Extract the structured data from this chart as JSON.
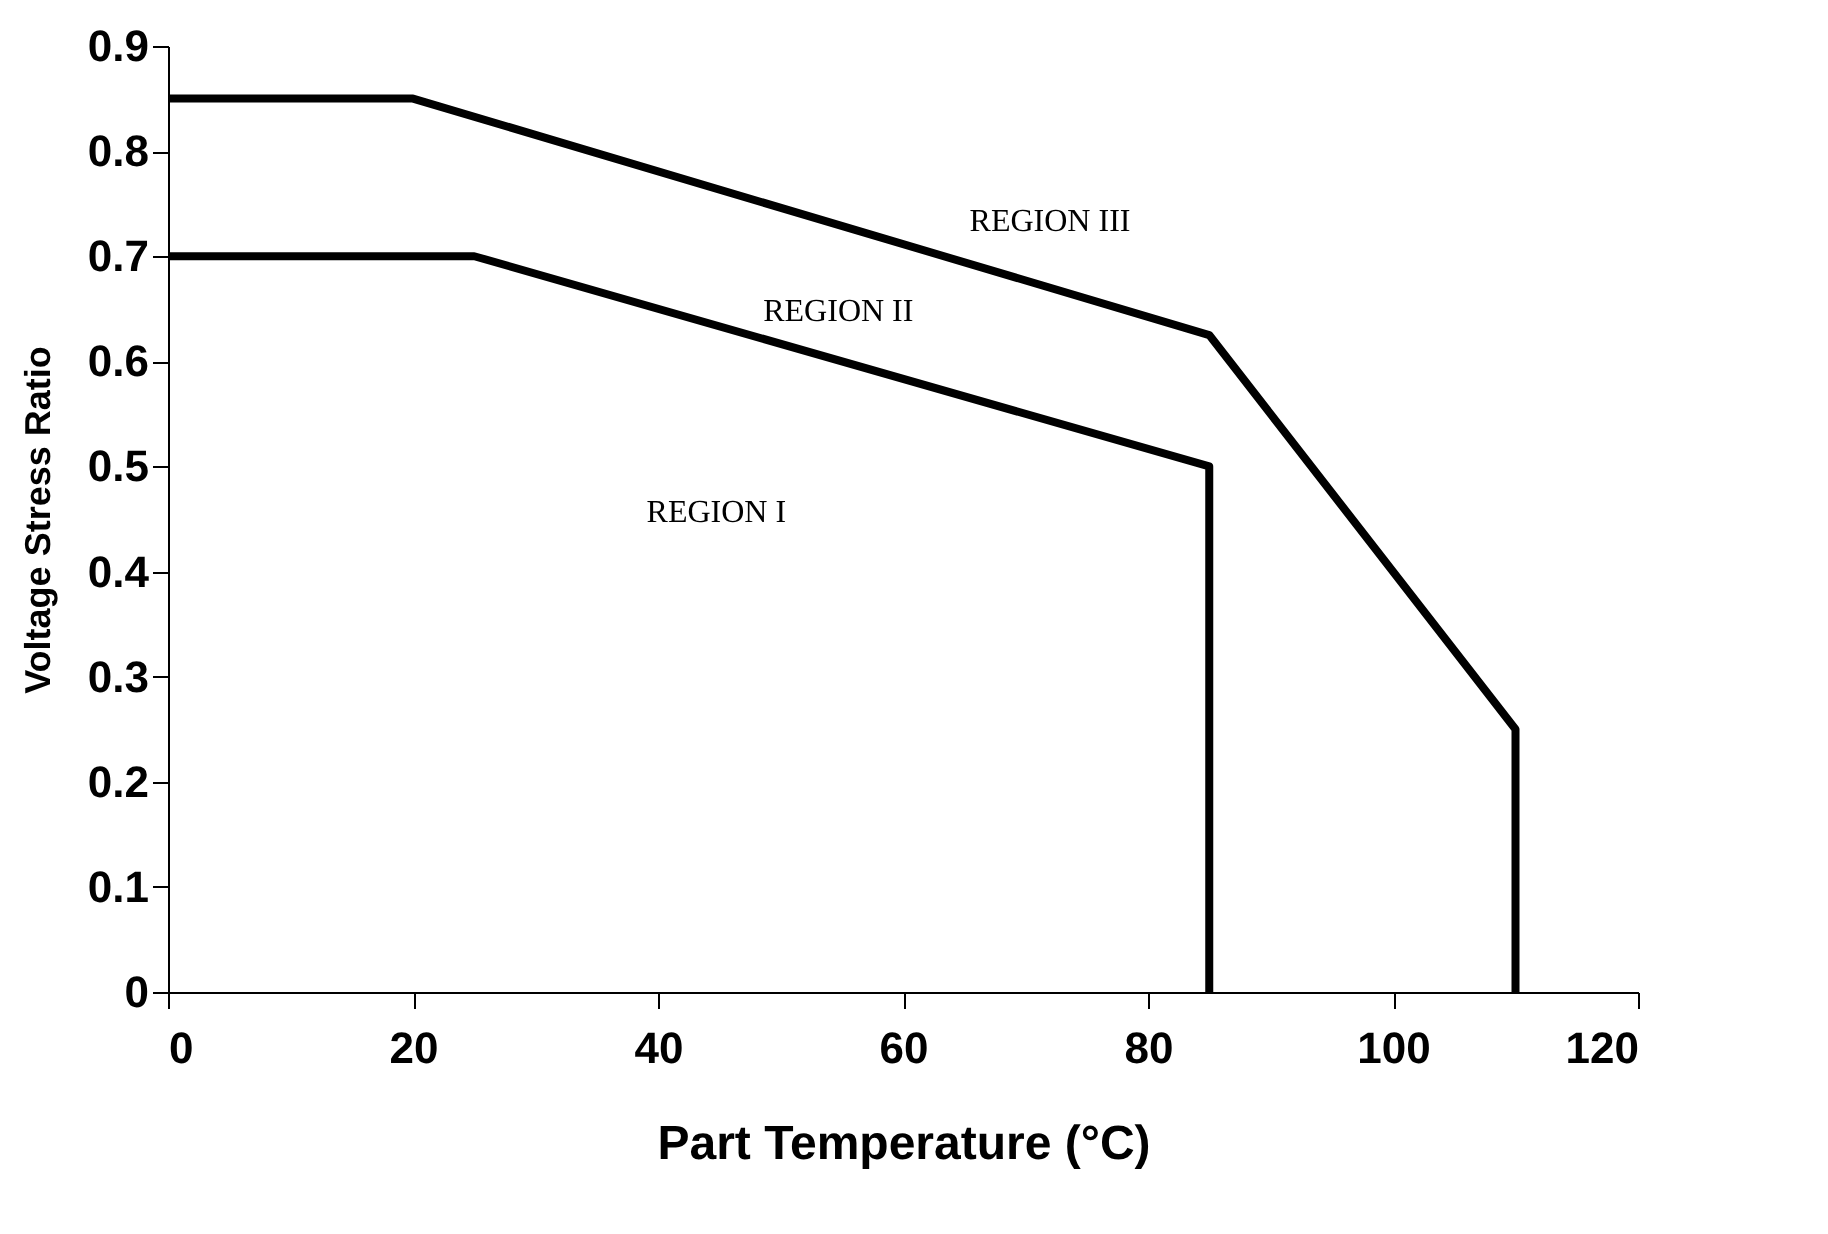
{
  "chart_data": {
    "type": "line",
    "xlabel": "Part Temperature (°C)",
    "ylabel": "Voltage Stress Ratio",
    "xlim": [
      0,
      120
    ],
    "xticks": [
      0,
      20,
      40,
      60,
      80,
      100,
      120
    ],
    "ylim": [
      0,
      0.9
    ],
    "yticks": [
      0,
      0.1,
      0.2,
      0.3,
      0.4,
      0.5,
      0.6,
      0.7,
      0.8,
      0.9
    ],
    "grid": false,
    "marker": "none",
    "line_style": "solid",
    "series": [
      {
        "color": "#000000",
        "x": [
          0,
          25,
          85,
          85
        ],
        "values": [
          0.7,
          0.7,
          0.5,
          0
        ]
      },
      {
        "color": "#000000",
        "x": [
          0,
          20,
          85,
          110,
          110
        ],
        "values": [
          0.85,
          0.85,
          0.625,
          0.25,
          0
        ]
      }
    ],
    "annotations": [
      "REGION III",
      "REGION II",
      "REGION I"
    ]
  }
}
